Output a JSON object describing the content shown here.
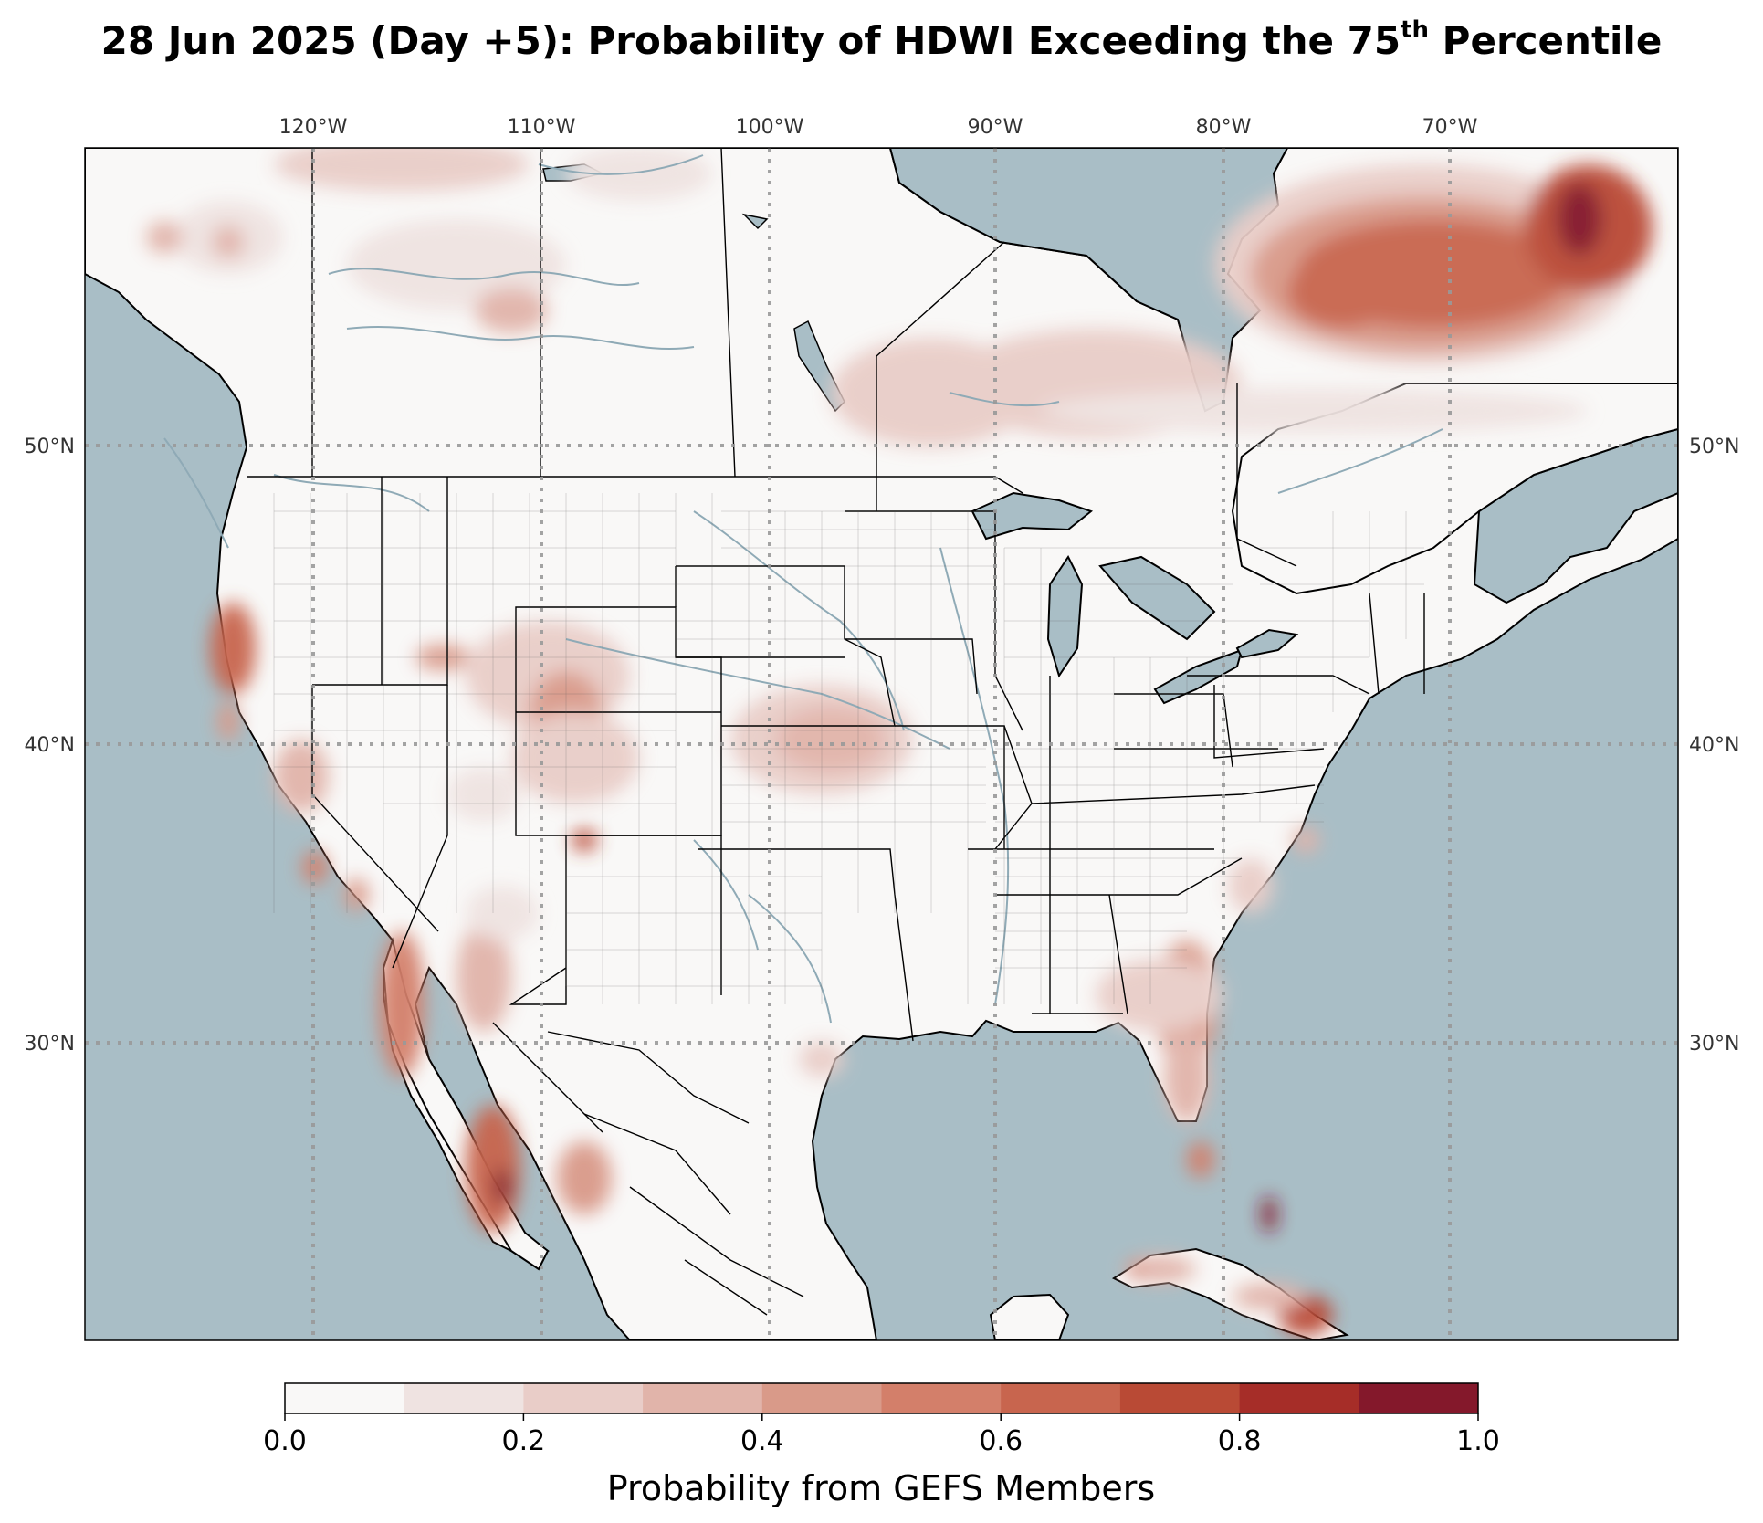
{
  "title": {
    "main": "28 Jun 2025 (Day +5): Probability of HDWI Exceeding the 75",
    "sup": "th",
    "tail": " Percentile"
  },
  "axes": {
    "lon_labels": [
      "120°W",
      "110°W",
      "100°W",
      "90°W",
      "80°W",
      "70°W"
    ],
    "lat_labels": [
      "50°N",
      "40°N",
      "30°N"
    ]
  },
  "colors": {
    "ocean": "#a9bec6",
    "land": "#f9f8f7",
    "rivers": "#8faab6",
    "levels": [
      "#f9f8f7",
      "#efe3e1",
      "#e9cdc8",
      "#e1b4aa",
      "#d99a89",
      "#d37f6a",
      "#c8654e",
      "#b94a35",
      "#a62d28",
      "#84182b"
    ]
  },
  "colorbar": {
    "ticks": [
      "0.0",
      "0.2",
      "0.4",
      "0.6",
      "0.8",
      "1.0"
    ],
    "label": "Probability from GEFS Members"
  }
}
